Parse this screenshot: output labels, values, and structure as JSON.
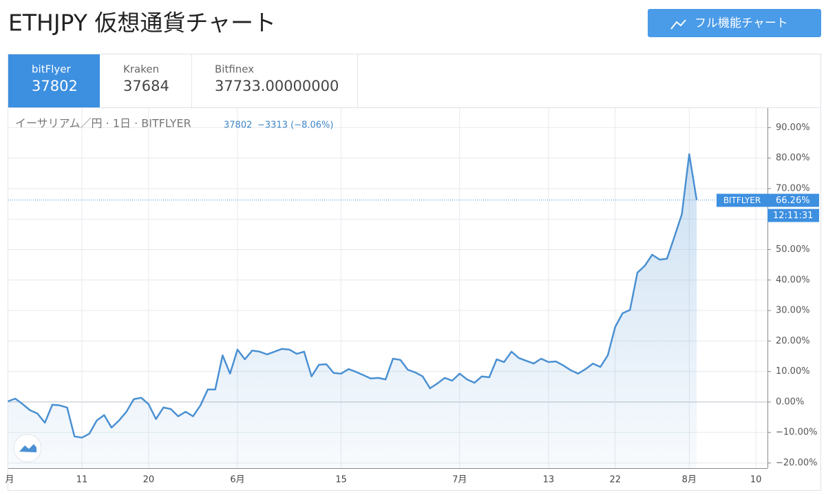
{
  "header": {
    "title": "ETHJPY 仮想通貨チャート",
    "button": "フル機能チャート"
  },
  "tabs": [
    {
      "name": "bitFlyer",
      "price": "37802"
    },
    {
      "name": "Kraken",
      "price": "37684"
    },
    {
      "name": "Bitfinex",
      "price": "37733.00000000"
    }
  ],
  "chart_data": {
    "type": "line",
    "legend": {
      "symbol": "イーサリアム／円 · 1日 · BITFLYER",
      "price": "37802",
      "change": "−3313 (−8.06%)"
    },
    "categories": [
      "月",
      null,
      null,
      null,
      null,
      null,
      null,
      null,
      null,
      null,
      "11",
      null,
      null,
      null,
      null,
      null,
      null,
      null,
      null,
      "20",
      null,
      null,
      null,
      null,
      null,
      null,
      null,
      null,
      null,
      null,
      null,
      "6月",
      null,
      null,
      null,
      null,
      null,
      null,
      null,
      null,
      null,
      null,
      null,
      null,
      null,
      "15",
      null,
      null,
      null,
      null,
      null,
      null,
      null,
      null,
      null,
      null,
      null,
      null,
      null,
      null,
      null,
      "7月",
      null,
      null,
      null,
      null,
      null,
      null,
      null,
      null,
      null,
      null,
      null,
      "13",
      null,
      null,
      null,
      null,
      null,
      null,
      null,
      null,
      "22",
      null,
      null,
      null,
      null,
      null,
      null,
      null,
      null,
      null,
      "8月",
      null,
      null,
      null,
      null,
      null,
      null,
      null,
      null,
      "10",
      null
    ],
    "series": [
      {
        "name": "BITFLYER",
        "color": "#4a90d2",
        "values": [
          0.2,
          1.1,
          -0.7,
          -2.7,
          -3.8,
          -6.8,
          -0.9,
          -1.1,
          -1.8,
          -11.3,
          -11.7,
          -10.4,
          -6.1,
          -4.3,
          -8.4,
          -6.1,
          -3.2,
          0.9,
          1.4,
          -0.7,
          -5.6,
          -1.8,
          -2.3,
          -4.7,
          -3.2,
          -4.7,
          -1.1,
          4.1,
          4.1,
          15.3,
          9.3,
          17.2,
          14.0,
          16.9,
          16.5,
          15.6,
          16.5,
          17.4,
          17.2,
          15.8,
          16.5,
          8.4,
          12.2,
          12.4,
          9.5,
          9.3,
          10.8,
          9.9,
          8.8,
          7.7,
          7.9,
          7.4,
          14.2,
          13.8,
          10.6,
          9.7,
          8.4,
          4.5,
          6.1,
          7.9,
          7.0,
          9.3,
          7.4,
          6.3,
          8.4,
          8.1,
          14.0,
          13.1,
          16.5,
          14.4,
          13.5,
          12.6,
          14.2,
          13.1,
          13.3,
          12.0,
          10.4,
          9.3,
          10.8,
          12.6,
          11.5,
          15.3,
          24.6,
          29.1,
          30.2,
          42.4,
          44.7,
          48.3,
          46.7,
          47.0,
          54.2,
          61.6,
          81.3,
          66.26,
          null,
          null,
          null,
          null,
          null,
          null,
          null,
          null,
          null
        ]
      }
    ],
    "current_label": "66.26%",
    "current_time": "12:11:31",
    "ylim": [
      -21.7,
      96.4
    ],
    "yticks": [
      {
        "value": -20,
        "label": "−20.00%"
      },
      {
        "value": -10,
        "label": "−10.00%"
      },
      {
        "value": 0,
        "label": "0.00%"
      },
      {
        "value": 10,
        "label": "10.00%"
      },
      {
        "value": 20,
        "label": "20.00%"
      },
      {
        "value": 30,
        "label": "30.00%"
      },
      {
        "value": 40,
        "label": "40.00%"
      },
      {
        "value": 50,
        "label": "50.00%"
      },
      {
        "value": 60,
        "label": "60.00%"
      },
      {
        "value": 70,
        "label": "70.00%"
      },
      {
        "value": 80,
        "label": "80.00%"
      },
      {
        "value": 90,
        "label": "90.00%"
      }
    ],
    "grid": true
  }
}
